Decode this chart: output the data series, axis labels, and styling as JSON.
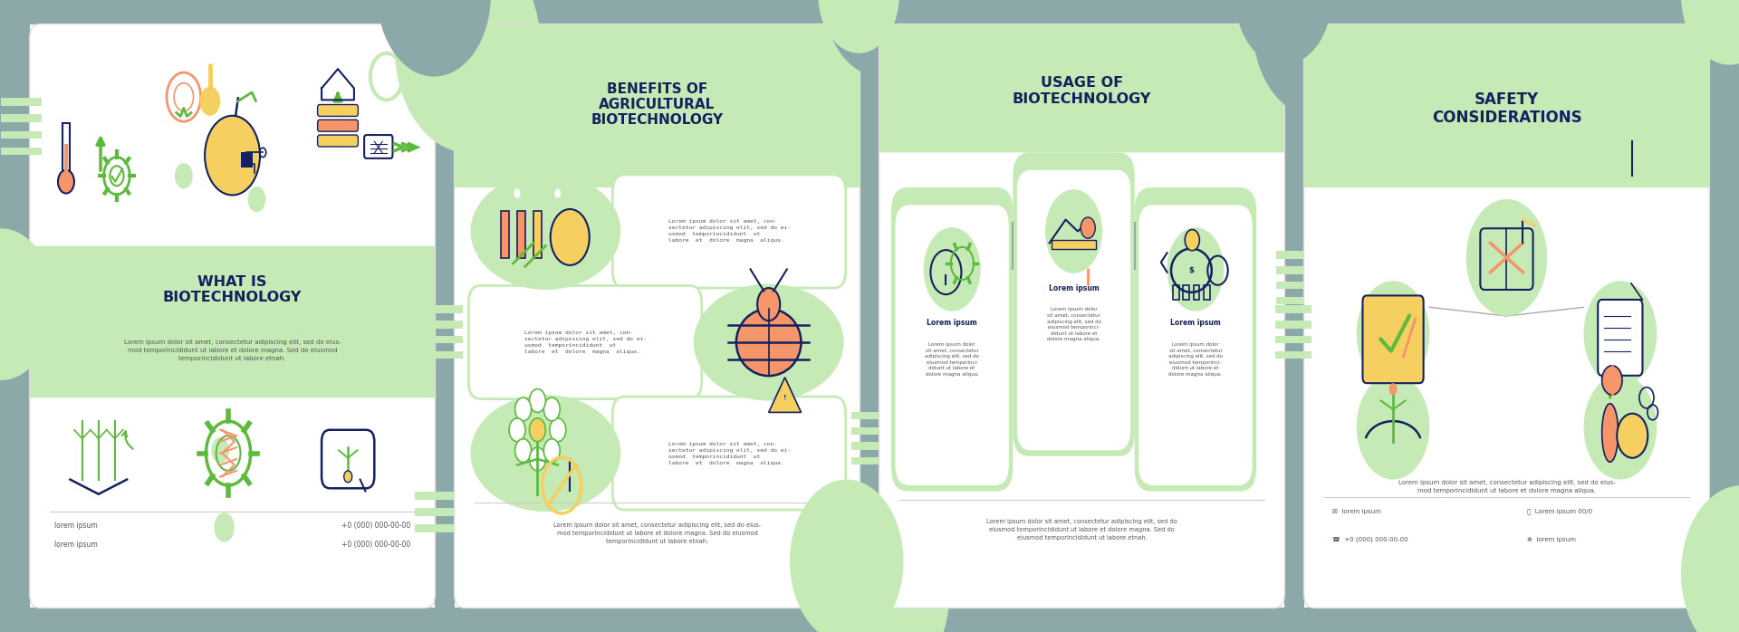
{
  "bg_color": "#8da8a8",
  "green_light": "#c5eab5",
  "green_accent": "#5dba3d",
  "dark_navy": "#152060",
  "text_gray": "#555555",
  "orange_accent": "#f4956a",
  "yellow_accent": "#f5d060",
  "white": "#ffffff",
  "panel_titles": [
    "WHAT IS\nBIOTECHNOLOGY",
    "BENEFITS OF\nAGRICULTURAL\nBIOTECHNOLOGY",
    "USAGE OF\nBIOTECHNOLOGY",
    "SAFETY\nCONSIDERATIONS"
  ],
  "lorem_body_p1": "Lorem ipsum dolor sit amet, consectetur adipiscing elit, sed do eius-\nmod temporincididunt ut labore et dolore magna. Sed do eiusmod\ntemporincididunt ut labore etnah.",
  "lorem_item": "Lorem ipsum dolor sit amet, con-\nsectetur adipiscing elit, sed do ei-\nusmod  temporincididunt  ut\nlabore  et  dolore  magna  aliqua.",
  "lorem_card_title": "Lorem ipsum",
  "lorem_card_text": "Lorem ipsum dolor\nsit amet, consectetur\nadipiscing elit, sed do\neiusmod temporinci-\ndidunt ut labore et\ndolore magna aliqua.",
  "lorem_footer_p2": "Lorem ipsum dolor sit amet, consectetur adipiscing elit, sed do eius-\nmod temporincididunt ut labore et dolore magna. Sed do eiusmod\ntemporincididunt ut labore etnah.",
  "lorem_footer_p3": "Lorem ipsum dolor sit amet, consectetur adipiscing elit, sed do\neiusmod temporincididunt ut labore et dolore magna. Sed do\neiusmod temporincididunt ut labore etnah.",
  "lorem_footer_p4": "Lorem ipsum dolor sit amet, consectetur adipiscing elit, sed do eius-\nmod temporincididunt ut labore et dolore magna aliqua.",
  "footer_left1": "lorem ipsum",
  "footer_left2": "lorem ipsum",
  "footer_right1": "+0 (000) 000-00-00",
  "footer_right2": "+0 (000) 000-00-00",
  "p4_footer": [
    [
      "lorem ipsum",
      "Lorem ipsum 00/0"
    ],
    [
      "+0 (000) 000-00-00",
      "lorem ipsum"
    ]
  ]
}
